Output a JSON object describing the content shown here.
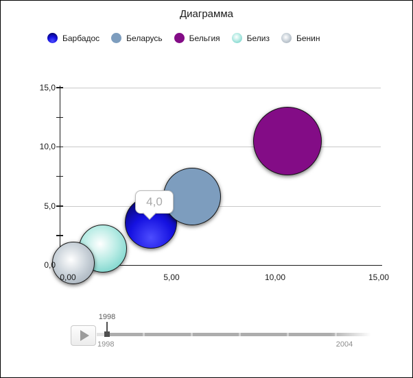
{
  "window": {
    "title": "Диаграмма"
  },
  "chart_data": {
    "type": "bubble",
    "title": "Диаграмма",
    "legend_position": "top",
    "grid": "horizontal",
    "x_axis": {
      "range": [
        0,
        15
      ],
      "tick_values": [
        0,
        5,
        10,
        15
      ],
      "tick_labels": [
        "0,00",
        "5,00",
        "10,00",
        "15,00"
      ],
      "minor_tick_step": 2.5
    },
    "y_axis": {
      "range": [
        0,
        15
      ],
      "tick_values": [
        0,
        5,
        10,
        15
      ],
      "tick_labels": [
        "0,0",
        "5,0",
        "10,0",
        "15,0"
      ],
      "minor_tick_values": [
        2.5,
        5,
        7.5,
        10,
        12.5,
        15
      ]
    },
    "series": [
      {
        "name": "Барбадос",
        "x": 4.0,
        "y": 3.6,
        "radius_px": 38,
        "fill": {
          "type": "radial",
          "at": "50% 80%",
          "stops": [
            "#4d4dff",
            "#1511e0",
            "#01013f"
          ]
        }
      },
      {
        "name": "Беларусь",
        "x": 6.0,
        "y": 5.8,
        "radius_px": 42,
        "fill": {
          "type": "solid",
          "color": "#7d9dbe"
        }
      },
      {
        "name": "Бельгия",
        "x": 10.6,
        "y": 10.5,
        "radius_px": 50,
        "fill": {
          "type": "solid",
          "color": "#830c86"
        }
      },
      {
        "name": "Белиз",
        "x": 1.7,
        "y": 1.4,
        "radius_px": 35,
        "fill": {
          "type": "radial",
          "at": "44% 40%",
          "stops": [
            "#ffffff",
            "#b7ebe4",
            "#5cc8bf"
          ]
        }
      },
      {
        "name": "Бенин",
        "x": 0.25,
        "y": 0.15,
        "radius_px": 31,
        "fill": {
          "type": "radial",
          "at": "44% 42%",
          "stops": [
            "#ffffff",
            "#ccd4db",
            "#95a1ad"
          ]
        }
      }
    ],
    "tooltip": {
      "target": "Барбадос",
      "text": "4,0"
    }
  },
  "timeline": {
    "current_label": "1998",
    "start_label": "1998",
    "end_label": "2004"
  }
}
